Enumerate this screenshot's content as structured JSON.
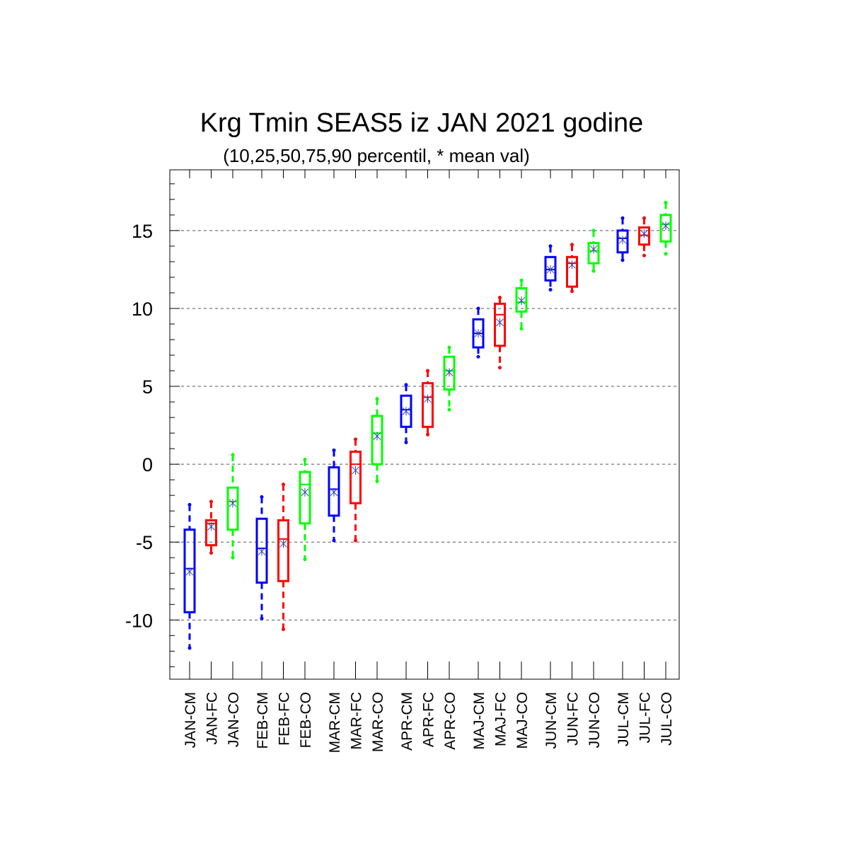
{
  "chart_data": {
    "type": "boxplot",
    "title": "Krg Tmin SEAS5 iz JAN 2021 godine",
    "subtitle": "(10,25,50,75,90 percentil, * mean val)",
    "ylim": [
      -13.8,
      18.9
    ],
    "yticks": [
      -10,
      -5,
      0,
      5,
      10,
      15
    ],
    "ytick_labels": [
      "-10",
      "-5",
      "0",
      "5",
      "10",
      "15"
    ],
    "grid": "horizontal dashed",
    "colors": {
      "CM": "#0000ff",
      "FC": "#ff0000",
      "CO": "#00ff00"
    },
    "categories": [
      "JAN-CM",
      "JAN-FC",
      "JAN-CO",
      "FEB-CM",
      "FEB-FC",
      "FEB-CO",
      "MAR-CM",
      "MAR-FC",
      "MAR-CO",
      "APR-CM",
      "APR-FC",
      "APR-CO",
      "MAJ-CM",
      "MAJ-FC",
      "MAJ-CO",
      "JUN-CM",
      "JUN-FC",
      "JUN-CO",
      "JUL-CM",
      "JUL-FC",
      "JUL-CO"
    ],
    "boxes": [
      {
        "label": "JAN-CM",
        "p10": -11.8,
        "p25": -9.5,
        "p50": -6.7,
        "p75": -4.2,
        "p90": -2.6,
        "mean": -6.9
      },
      {
        "label": "JAN-FC",
        "p10": -5.7,
        "p25": -5.2,
        "p50": -3.8,
        "p75": -3.6,
        "p90": -2.4,
        "mean": -4.0
      },
      {
        "label": "JAN-CO",
        "p10": -6.0,
        "p25": -4.2,
        "p50": -2.4,
        "p75": -1.5,
        "p90": 0.6,
        "mean": -2.5
      },
      {
        "label": "FEB-CM",
        "p10": -9.9,
        "p25": -7.6,
        "p50": -5.4,
        "p75": -3.5,
        "p90": -2.1,
        "mean": -5.6
      },
      {
        "label": "FEB-FC",
        "p10": -10.6,
        "p25": -7.5,
        "p50": -4.8,
        "p75": -3.6,
        "p90": -1.3,
        "mean": -5.1
      },
      {
        "label": "FEB-CO",
        "p10": -6.1,
        "p25": -3.8,
        "p50": -1.3,
        "p75": -0.5,
        "p90": 0.3,
        "mean": -1.8
      },
      {
        "label": "MAR-CM",
        "p10": -4.9,
        "p25": -3.3,
        "p50": -1.6,
        "p75": -0.2,
        "p90": 0.9,
        "mean": -1.8
      },
      {
        "label": "MAR-FC",
        "p10": -4.9,
        "p25": -2.5,
        "p50": 0.0,
        "p75": 0.8,
        "p90": 1.6,
        "mean": -0.4
      },
      {
        "label": "MAR-CO",
        "p10": -1.1,
        "p25": 0.0,
        "p50": 2.0,
        "p75": 3.1,
        "p90": 4.2,
        "mean": 1.8
      },
      {
        "label": "APR-CM",
        "p10": 1.4,
        "p25": 2.4,
        "p50": 3.5,
        "p75": 4.4,
        "p90": 5.1,
        "mean": 3.4
      },
      {
        "label": "APR-FC",
        "p10": 1.9,
        "p25": 2.4,
        "p50": 4.3,
        "p75": 5.2,
        "p90": 6.0,
        "mean": 4.2
      },
      {
        "label": "APR-CO",
        "p10": 3.5,
        "p25": 4.8,
        "p50": 6.0,
        "p75": 6.9,
        "p90": 7.5,
        "mean": 5.9
      },
      {
        "label": "MAJ-CM",
        "p10": 6.9,
        "p25": 7.5,
        "p50": 8.4,
        "p75": 9.3,
        "p90": 10.0,
        "mean": 8.4
      },
      {
        "label": "MAJ-FC",
        "p10": 6.2,
        "p25": 7.6,
        "p50": 9.6,
        "p75": 10.3,
        "p90": 10.7,
        "mean": 9.1
      },
      {
        "label": "MAJ-CO",
        "p10": 8.7,
        "p25": 9.8,
        "p50": 10.4,
        "p75": 11.3,
        "p90": 11.8,
        "mean": 10.5
      },
      {
        "label": "JUN-CM",
        "p10": 11.2,
        "p25": 11.8,
        "p50": 12.5,
        "p75": 13.3,
        "p90": 14.0,
        "mean": 12.5
      },
      {
        "label": "JUN-FC",
        "p10": 11.1,
        "p25": 11.4,
        "p50": 12.9,
        "p75": 13.3,
        "p90": 14.1,
        "mean": 12.8
      },
      {
        "label": "JUN-CO",
        "p10": 12.4,
        "p25": 12.9,
        "p50": 13.7,
        "p75": 14.2,
        "p90": 15.0,
        "mean": 13.8
      },
      {
        "label": "JUL-CM",
        "p10": 13.1,
        "p25": 13.6,
        "p50": 14.5,
        "p75": 15.0,
        "p90": 15.8,
        "mean": 14.4
      },
      {
        "label": "JUL-FC",
        "p10": 13.4,
        "p25": 14.1,
        "p50": 14.7,
        "p75": 15.2,
        "p90": 15.8,
        "mean": 14.8
      },
      {
        "label": "JUL-CO",
        "p10": 13.5,
        "p25": 14.3,
        "p50": 15.4,
        "p75": 16.0,
        "p90": 16.8,
        "mean": 15.3
      }
    ]
  }
}
